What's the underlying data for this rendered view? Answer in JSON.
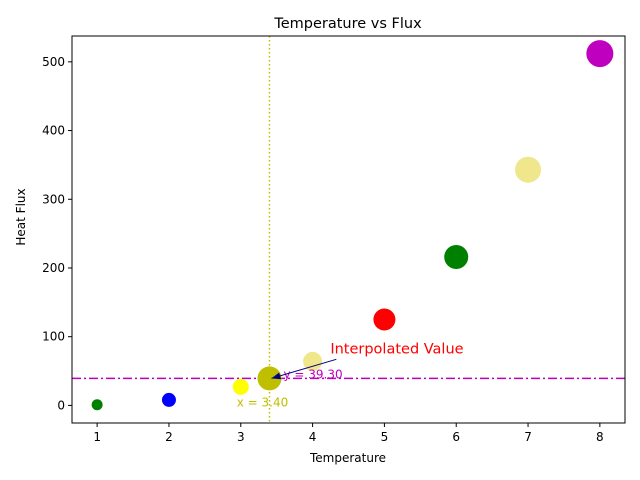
{
  "chart_data": {
    "type": "scatter",
    "title": "Temperature vs Flux",
    "xlabel": "Temperature",
    "ylabel": "Heat Flux",
    "xlim": [
      0.65,
      8.35
    ],
    "ylim": [
      -25.6,
      537.6
    ],
    "xticks": [
      1,
      2,
      3,
      4,
      5,
      6,
      7,
      8
    ],
    "yticks": [
      0,
      100,
      200,
      300,
      400,
      500
    ],
    "grid": false,
    "points": [
      {
        "x": 1,
        "y": 1,
        "color": "#008000",
        "size": 11
      },
      {
        "x": 2,
        "y": 8,
        "color": "#0000ff",
        "size": 14
      },
      {
        "x": 3,
        "y": 27,
        "color": "#ffff00",
        "size": 16
      },
      {
        "x": 4,
        "y": 64,
        "color": "#f0e68c",
        "size": 19
      },
      {
        "x": 5,
        "y": 125,
        "color": "#ff0000",
        "size": 22
      },
      {
        "x": 6,
        "y": 216,
        "color": "#008000",
        "size": 24
      },
      {
        "x": 7,
        "y": 343,
        "color": "#f0e68c",
        "size": 26
      },
      {
        "x": 8,
        "y": 512,
        "color": "#bf00bf",
        "size": 27
      }
    ],
    "interpolated_point": {
      "x": 3.4,
      "y": 39.3,
      "color": "#bfbf00",
      "size": 24
    },
    "vline": {
      "x": 3.4,
      "color": "#bfbf00",
      "style": "dotted"
    },
    "hline": {
      "y": 39.3,
      "color": "#bf00bf",
      "style": "dashdot"
    },
    "x_label_text": "x = 3.40",
    "x_label_color": "#bfbf00",
    "y_label_text": "y = 39.30",
    "y_label_color": "#bf00bf",
    "annotation": {
      "text": "Interpolated Value",
      "color": "#ff0000",
      "arrow_color": "#000080",
      "text_x": 4.4,
      "text_y": 70,
      "target_x": 3.4,
      "target_y": 39.3
    }
  }
}
